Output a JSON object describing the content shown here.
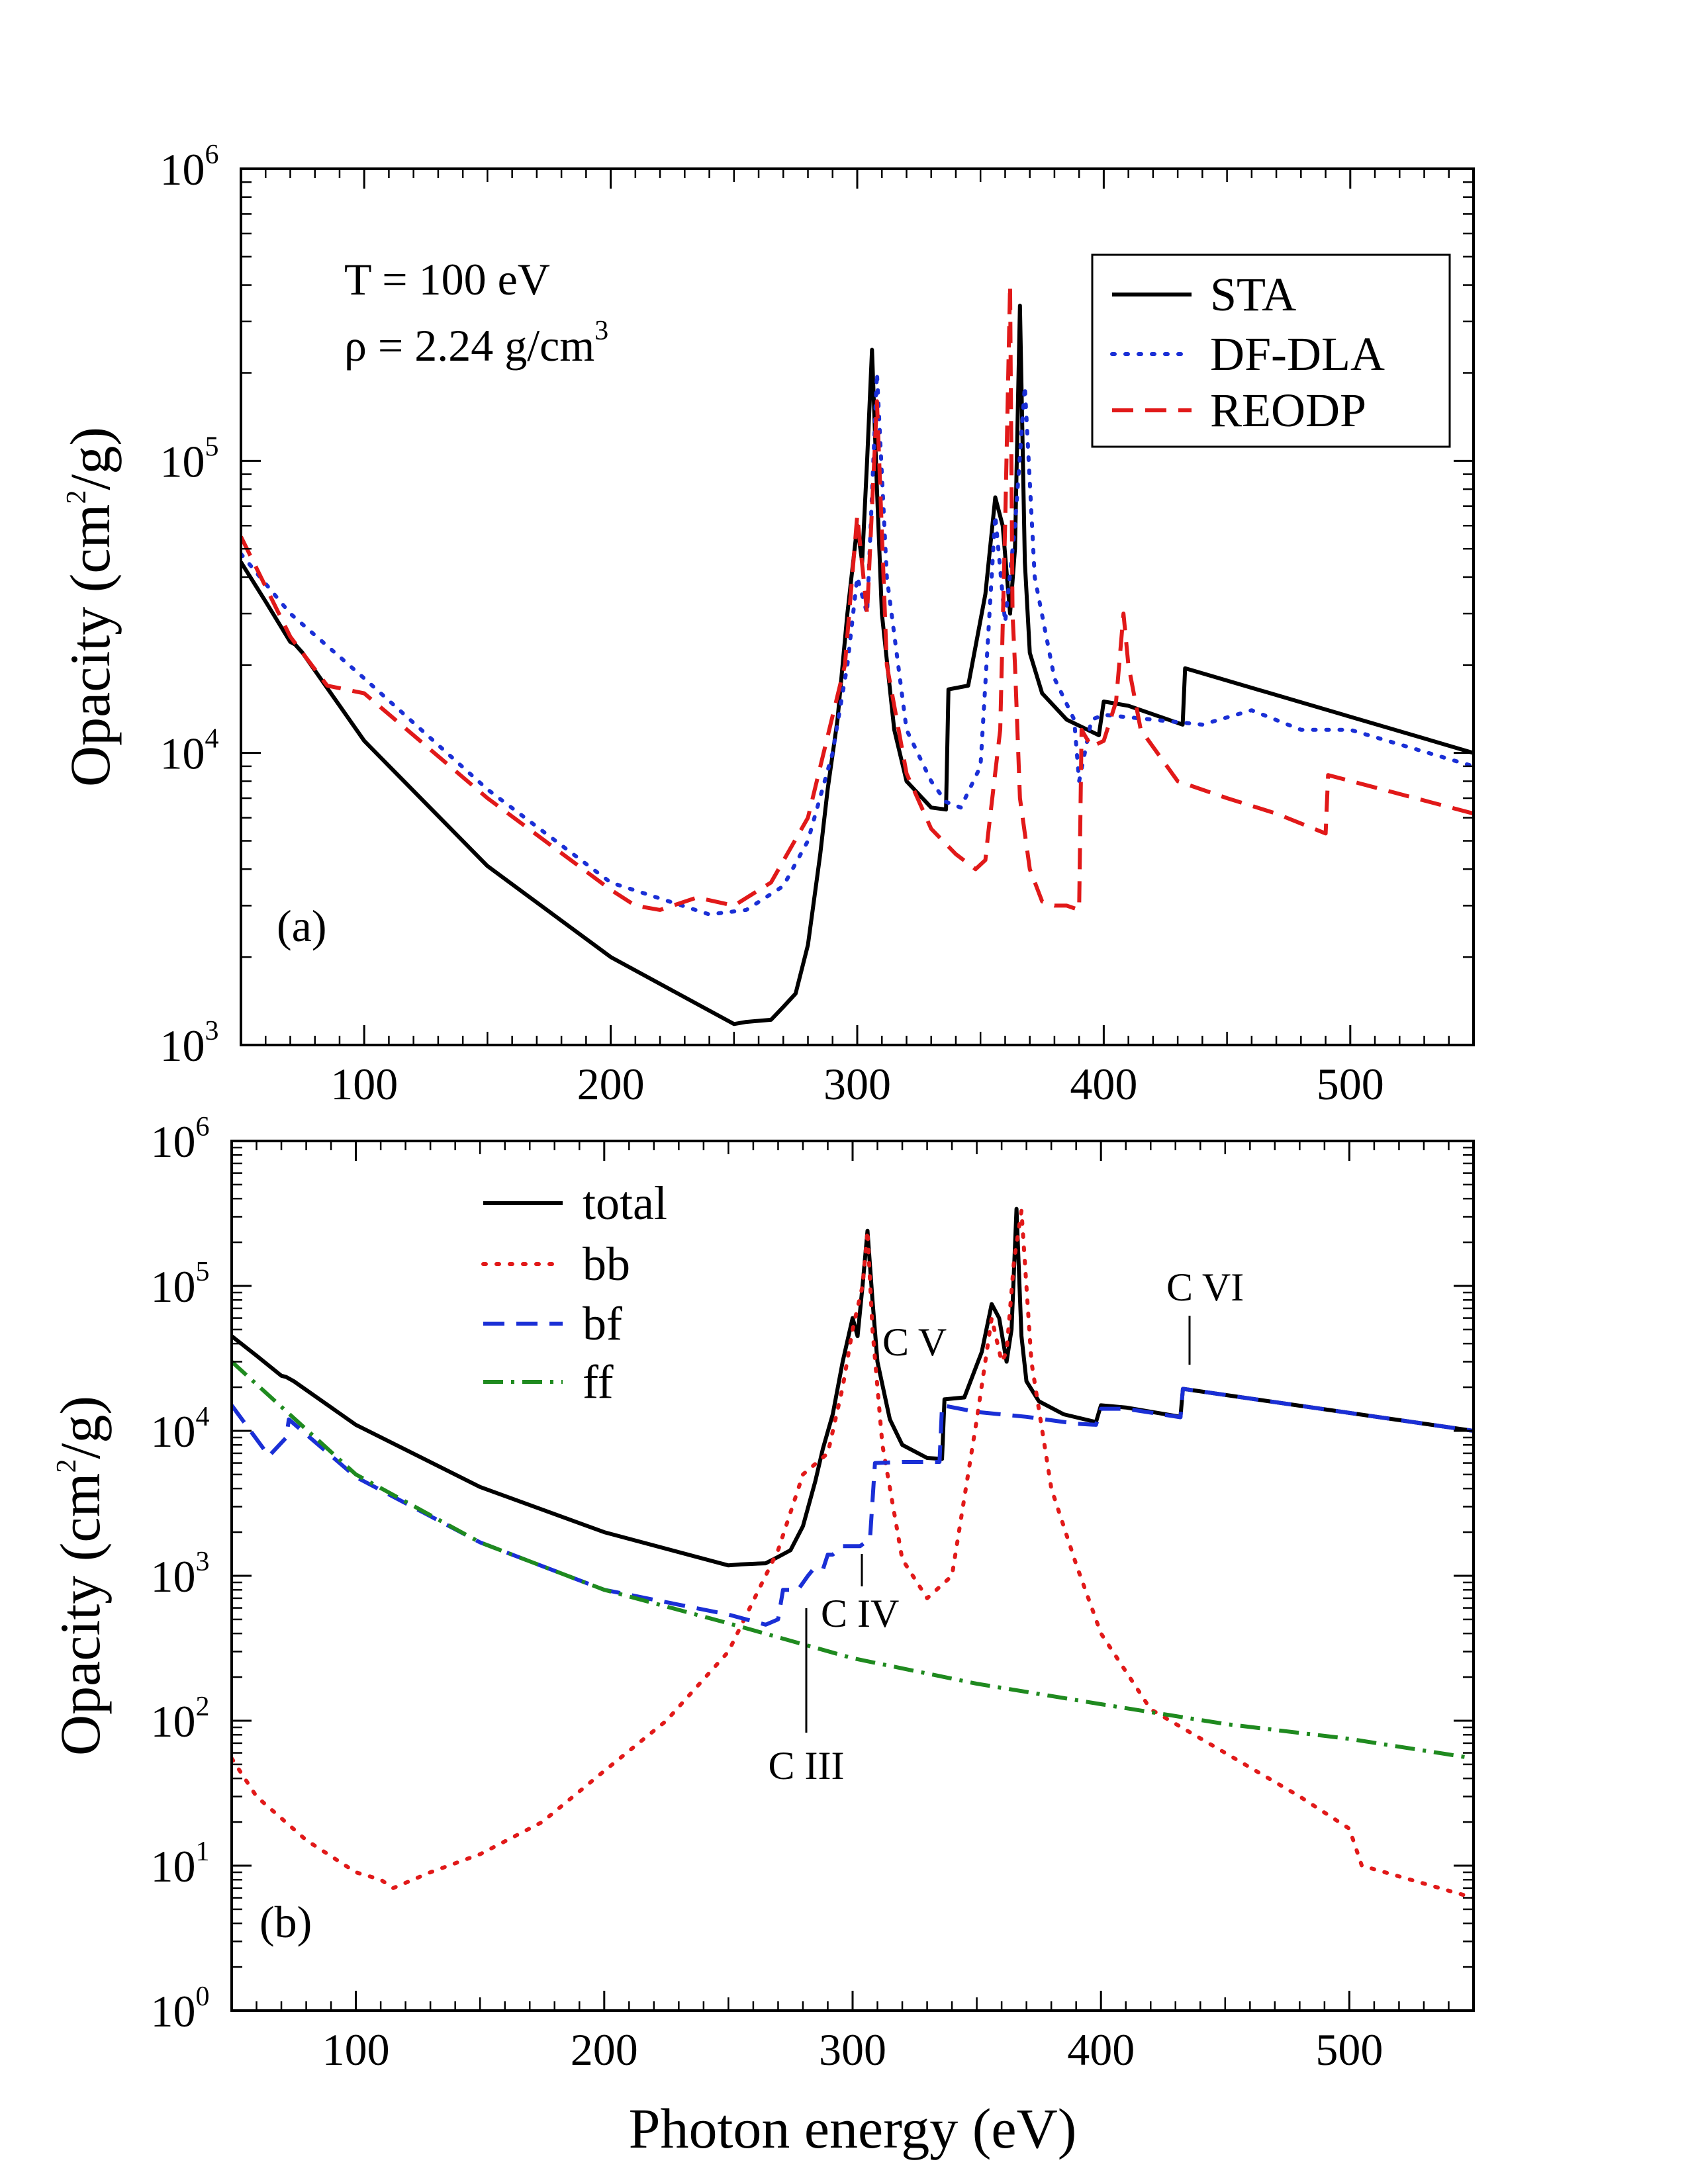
{
  "chart_data": [
    {
      "type": "line",
      "panel": "(a)",
      "xlim": [
        50,
        550
      ],
      "ylim": [
        1000,
        1000000
      ],
      "yscale": "log",
      "xlabel": "",
      "ylabel_prefix": "Opacity (cm",
      "ylabel_sup": "2",
      "ylabel_suffix": "/g)",
      "xticks": [
        100,
        200,
        300,
        400,
        500
      ],
      "yticks": [
        {
          "base": "10",
          "exp": "3",
          "value": 1000
        },
        {
          "base": "10",
          "exp": "4",
          "value": 10000
        },
        {
          "base": "10",
          "exp": "5",
          "value": 100000
        },
        {
          "base": "10",
          "exp": "6",
          "value": 1000000
        }
      ],
      "annotation": {
        "temp": "T = 100 eV",
        "rho_prefix": "ρ = 2.24 g/cm",
        "rho_sup": "3"
      },
      "legend_position": "top-right",
      "series": [
        {
          "name": "STA",
          "color": "#000000",
          "dash": "solid",
          "x": [
            50,
            60,
            70,
            72,
            75,
            100,
            150,
            200,
            250,
            255,
            265,
            270,
            275,
            280,
            285,
            288,
            292,
            296,
            300,
            302,
            304,
            306,
            308,
            310,
            315,
            320,
            330,
            336,
            337,
            345,
            352,
            356,
            359,
            362,
            364,
            366,
            368,
            370,
            375,
            385,
            398,
            400,
            410,
            432,
            433,
            550
          ],
          "y": [
            45000,
            33000,
            24000,
            23500,
            22000,
            11000,
            4100,
            2000,
            1180,
            1200,
            1220,
            1350,
            1500,
            2200,
            4500,
            7500,
            13000,
            30000,
            60000,
            45000,
            100000,
            240000,
            80000,
            30000,
            12000,
            8000,
            6500,
            6400,
            16500,
            17000,
            35000,
            75000,
            60000,
            30000,
            50000,
            340000,
            45000,
            22000,
            16000,
            13000,
            11500,
            15000,
            14500,
            12500,
            19500,
            10000
          ]
        },
        {
          "name": "DF-DLA",
          "color": "#1a2fd6",
          "dash": "dotted",
          "x": [
            50,
            70,
            100,
            150,
            200,
            240,
            255,
            270,
            280,
            290,
            296,
            300,
            304,
            308,
            312,
            320,
            330,
            336,
            342,
            350,
            356,
            360,
            364,
            368,
            372,
            380,
            388,
            390,
            395,
            400,
            420,
            440,
            460,
            480,
            500,
            550
          ],
          "y": [
            48000,
            30000,
            18000,
            7500,
            3600,
            2800,
            2900,
            3500,
            5000,
            10000,
            20000,
            40000,
            30000,
            200000,
            40000,
            12000,
            8000,
            6800,
            6500,
            9000,
            65000,
            28000,
            60000,
            180000,
            40000,
            18000,
            13000,
            8000,
            13000,
            13500,
            13000,
            12500,
            14000,
            12000,
            12000,
            9000
          ]
        },
        {
          "name": "REODP",
          "color": "#e11919",
          "dash": "dashed",
          "x": [
            50,
            70,
            85,
            100,
            150,
            200,
            210,
            220,
            235,
            250,
            265,
            280,
            295,
            300,
            304,
            308,
            312,
            320,
            330,
            340,
            348,
            352,
            353,
            358,
            360,
            362,
            363,
            364,
            366,
            370,
            375,
            380,
            385,
            390,
            391,
            395,
            400,
            405,
            408,
            410,
            415,
            430,
            450,
            470,
            490,
            491,
            550
          ],
          "y": [
            55000,
            25000,
            17000,
            16000,
            7000,
            3400,
            3000,
            2900,
            3200,
            3000,
            3600,
            6000,
            20000,
            65000,
            30000,
            160000,
            20000,
            8500,
            5500,
            4500,
            4000,
            4300,
            5200,
            12000,
            60000,
            400000,
            30000,
            20000,
            7000,
            4000,
            3100,
            3000,
            3000,
            2900,
            12000,
            10500,
            11000,
            15000,
            30000,
            20000,
            12000,
            8000,
            7000,
            6200,
            5300,
            8400,
            6200
          ]
        }
      ]
    },
    {
      "type": "line",
      "panel": "(b)",
      "xlim": [
        50,
        550
      ],
      "ylim": [
        1,
        1000000
      ],
      "yscale": "log",
      "xlabel": "Photon energy (eV)",
      "ylabel_prefix": "Opacity (cm",
      "ylabel_sup": "2",
      "ylabel_suffix": "/g)",
      "xticks": [
        100,
        200,
        300,
        400,
        500
      ],
      "yticks": [
        {
          "base": "10",
          "exp": "0",
          "value": 1
        },
        {
          "base": "10",
          "exp": "1",
          "value": 10
        },
        {
          "base": "10",
          "exp": "2",
          "value": 100
        },
        {
          "base": "10",
          "exp": "3",
          "value": 1000
        },
        {
          "base": "10",
          "exp": "4",
          "value": 10000
        },
        {
          "base": "10",
          "exp": "5",
          "value": 100000
        },
        {
          "base": "10",
          "exp": "6",
          "value": 1000000
        }
      ],
      "legend_position": "top-left",
      "ion_labels": [
        {
          "text": "C III",
          "energy": 280,
          "value": 100
        },
        {
          "text": "C IV",
          "energy": 301,
          "value": 750
        },
        {
          "text": "C V",
          "energy": 310,
          "value": 35000
        },
        {
          "text": "C VI",
          "energy": 432,
          "value": 55000
        }
      ],
      "series": [
        {
          "name": "total",
          "color": "#000000",
          "dash": "solid",
          "x": [
            50,
            60,
            70,
            72,
            75,
            100,
            150,
            200,
            250,
            255,
            265,
            270,
            275,
            280,
            285,
            288,
            292,
            296,
            300,
            302,
            304,
            306,
            308,
            310,
            315,
            320,
            330,
            336,
            337,
            345,
            352,
            356,
            359,
            362,
            364,
            366,
            368,
            370,
            375,
            385,
            398,
            400,
            410,
            432,
            433,
            550
          ],
          "y": [
            45000,
            33000,
            24000,
            23500,
            22000,
            11000,
            4100,
            2000,
            1180,
            1200,
            1220,
            1350,
            1500,
            2200,
            4500,
            7500,
            13000,
            30000,
            60000,
            45000,
            100000,
            240000,
            80000,
            30000,
            12000,
            8000,
            6500,
            6400,
            16500,
            17000,
            35000,
            75000,
            60000,
            30000,
            50000,
            340000,
            45000,
            22000,
            16000,
            13000,
            11500,
            15000,
            14500,
            12500,
            19500,
            10000
          ]
        },
        {
          "name": "bb",
          "color": "#e11919",
          "dash": "dotted",
          "x": [
            50,
            60,
            80,
            100,
            110,
            115,
            130,
            150,
            175,
            200,
            225,
            250,
            270,
            280,
            290,
            296,
            300,
            304,
            306,
            308,
            312,
            320,
            330,
            340,
            350,
            356,
            360,
            362,
            365,
            368,
            372,
            380,
            390,
            400,
            420,
            450,
            480,
            500,
            505,
            550
          ],
          "y": [
            55,
            30,
            15,
            9,
            8,
            7,
            9,
            12,
            20,
            45,
            100,
            300,
            1500,
            5000,
            7000,
            20000,
            50000,
            100000,
            240000,
            50000,
            8000,
            1300,
            700,
            1000,
            12000,
            60000,
            30000,
            35000,
            150000,
            330000,
            30000,
            4000,
            1200,
            400,
            120,
            60,
            30,
            18,
            10,
            6
          ]
        },
        {
          "name": "bf",
          "color": "#1a2fd6",
          "dash": "dashed",
          "x": [
            50,
            65,
            72,
            73,
            100,
            150,
            200,
            250,
            265,
            270,
            272,
            278,
            282,
            284,
            288,
            290,
            292,
            296,
            300,
            303,
            305,
            307,
            309,
            320,
            335,
            336,
            350,
            370,
            390,
            398,
            400,
            410,
            432,
            433,
            550
          ],
          "y": [
            15000,
            6700,
            9000,
            12000,
            4800,
            1700,
            800,
            540,
            460,
            500,
            800,
            800,
            1000,
            1100,
            1100,
            1400,
            1400,
            1600,
            1600,
            1600,
            1700,
            1800,
            6000,
            6100,
            6100,
            15000,
            13500,
            12500,
            11200,
            11000,
            14200,
            14200,
            12400,
            19500,
            10000
          ]
        },
        {
          "name": "ff",
          "color": "#1f8a1f",
          "dash": "dashdot",
          "x": [
            50,
            100,
            150,
            200,
            250,
            300,
            350,
            400,
            450,
            500,
            550
          ],
          "y": [
            30000,
            5000,
            1700,
            800,
            470,
            270,
            180,
            130,
            95,
            75,
            55
          ]
        }
      ]
    }
  ]
}
